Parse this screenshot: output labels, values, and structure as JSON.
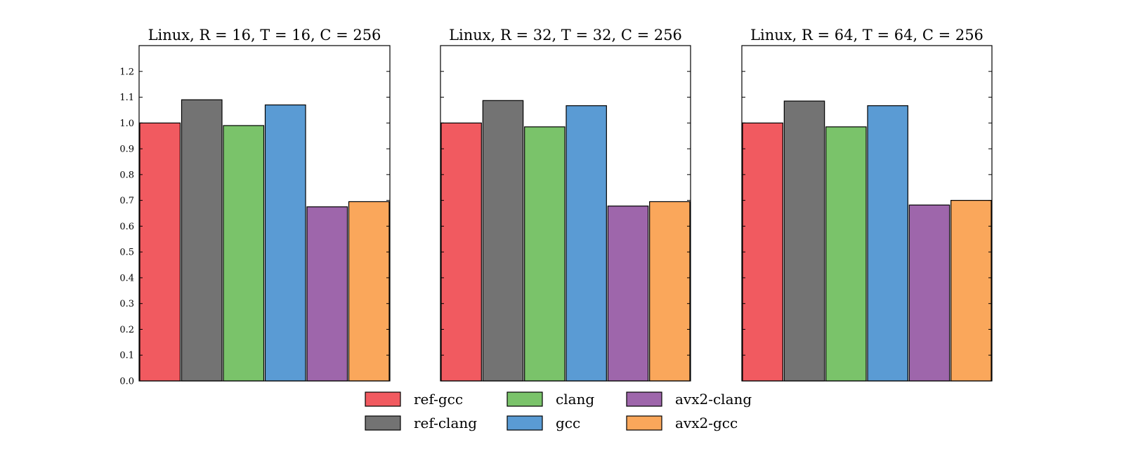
{
  "chart_data": [
    {
      "type": "bar",
      "title": "Linux, R = 16, T = 16, C = 256",
      "ylim": [
        0.0,
        1.3
      ],
      "yticks": [
        "0.0",
        "0.1",
        "0.2",
        "0.3",
        "0.4",
        "0.5",
        "0.6",
        "0.7",
        "0.8",
        "0.9",
        "1.0",
        "1.1",
        "1.2"
      ],
      "series": [
        {
          "name": "ref-gcc",
          "values": [
            1.0
          ]
        },
        {
          "name": "ref-clang",
          "values": [
            1.09
          ]
        },
        {
          "name": "clang",
          "values": [
            0.99
          ]
        },
        {
          "name": "gcc",
          "values": [
            1.07
          ]
        },
        {
          "name": "avx2-clang",
          "values": [
            0.675
          ]
        },
        {
          "name": "avx2-gcc",
          "values": [
            0.695
          ]
        }
      ]
    },
    {
      "type": "bar",
      "title": "Linux, R = 32, T = 32, C = 256",
      "ylim": [
        0.0,
        1.3
      ],
      "series": [
        {
          "name": "ref-gcc",
          "values": [
            1.0
          ]
        },
        {
          "name": "ref-clang",
          "values": [
            1.087
          ]
        },
        {
          "name": "clang",
          "values": [
            0.985
          ]
        },
        {
          "name": "gcc",
          "values": [
            1.067
          ]
        },
        {
          "name": "avx2-clang",
          "values": [
            0.678
          ]
        },
        {
          "name": "avx2-gcc",
          "values": [
            0.695
          ]
        }
      ]
    },
    {
      "type": "bar",
      "title": "Linux, R = 64, T = 64, C = 256",
      "ylim": [
        0.0,
        1.3
      ],
      "series": [
        {
          "name": "ref-gcc",
          "values": [
            1.0
          ]
        },
        {
          "name": "ref-clang",
          "values": [
            1.085
          ]
        },
        {
          "name": "clang",
          "values": [
            0.985
          ]
        },
        {
          "name": "gcc",
          "values": [
            1.067
          ]
        },
        {
          "name": "avx2-clang",
          "values": [
            0.682
          ]
        },
        {
          "name": "avx2-gcc",
          "values": [
            0.7
          ]
        }
      ]
    }
  ],
  "legend": {
    "placement": "bottom-center",
    "items": [
      {
        "name": "ref-gcc",
        "color": "#f15a60"
      },
      {
        "name": "ref-clang",
        "color": "#737373"
      },
      {
        "name": "clang",
        "color": "#7ac36a"
      },
      {
        "name": "gcc",
        "color": "#5a9bd4"
      },
      {
        "name": "avx2-clang",
        "color": "#9e66ab"
      },
      {
        "name": "avx2-gcc",
        "color": "#faa75b"
      }
    ]
  }
}
